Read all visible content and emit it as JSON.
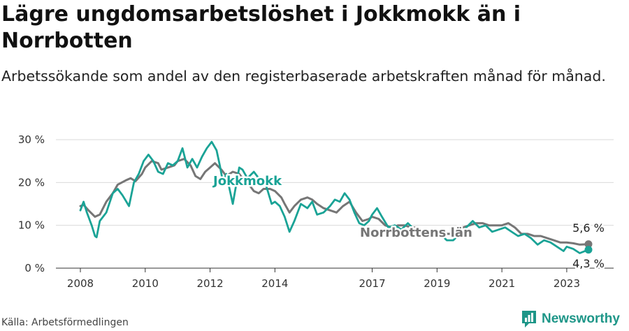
{
  "title": "Lägre ungdomsarbetslöshet i Jokkmokk än i Norrbotten",
  "subtitle": "Arbetssökande som andel av den registerbaserade arbetskraften månad för månad.",
  "source": "Källa: Arbetsförmedlingen",
  "brand": "Newsworthy",
  "colors": {
    "jokkmokk": "#1aa396",
    "norrbotten": "#767676",
    "grid": "#d9d9d9",
    "brand": "#1e9688"
  },
  "chart_data": {
    "type": "line",
    "title": "Lägre ungdomsarbetslöshet i Jokkmokk än i Norrbotten",
    "ylabel": "",
    "xlabel": "",
    "x_range": [
      2008.0,
      2023.67
    ],
    "ylim": [
      0,
      30
    ],
    "y_ticks": [
      0,
      10,
      20,
      30
    ],
    "y_tick_labels": [
      "0 %",
      "10 %",
      "20 %",
      "30 %"
    ],
    "x_ticks": [
      2008,
      2010,
      2012,
      2014,
      2017,
      2019,
      2021,
      2023
    ],
    "x_tick_labels": [
      "2008",
      "2010",
      "2012",
      "2014",
      "2017",
      "2019",
      "2021",
      "2023"
    ],
    "series": [
      {
        "name": "Norrbottens län",
        "label": "Norrbottens län",
        "color": "#767676",
        "x": [
          2008.0,
          2008.1,
          2008.25,
          2008.45,
          2008.6,
          2008.8,
          2009.0,
          2009.15,
          2009.4,
          2009.55,
          2009.7,
          2009.9,
          2010.0,
          2010.2,
          2010.4,
          2010.5,
          2010.7,
          2010.9,
          2011.0,
          2011.2,
          2011.4,
          2011.55,
          2011.7,
          2011.85,
          2012.0,
          2012.15,
          2012.35,
          2012.5,
          2012.7,
          2012.9,
          2013.0,
          2013.2,
          2013.35,
          2013.5,
          2013.65,
          2013.85,
          2014.0,
          2014.2,
          2014.3,
          2014.45,
          2014.6,
          2014.8,
          2015.0,
          2015.15,
          2015.3,
          2015.5,
          2015.7,
          2015.9,
          2016.1,
          2016.3,
          2016.5,
          2016.7,
          2016.9,
          2017.0,
          2017.2,
          2017.4,
          2017.6,
          2017.8,
          2018.0,
          2018.2,
          2018.4,
          2018.6,
          2018.8,
          2019.0,
          2019.2,
          2019.4,
          2019.6,
          2019.8,
          2020.0,
          2020.2,
          2020.4,
          2020.6,
          2020.8,
          2021.0,
          2021.2,
          2021.4,
          2021.6,
          2021.8,
          2022.0,
          2022.2,
          2022.4,
          2022.6,
          2022.8,
          2023.0,
          2023.2,
          2023.4,
          2023.67
        ],
        "values": [
          14.5,
          14.8,
          13.5,
          12.0,
          12.5,
          15.5,
          17.5,
          19.5,
          20.5,
          21.0,
          20.3,
          22.0,
          23.5,
          25.0,
          24.5,
          23.0,
          23.5,
          24.0,
          25.0,
          25.5,
          24.0,
          21.5,
          20.8,
          22.5,
          23.5,
          24.5,
          23.0,
          21.5,
          22.5,
          22.0,
          21.0,
          19.5,
          18.0,
          17.5,
          18.5,
          18.5,
          18.0,
          16.5,
          15.0,
          13.0,
          14.5,
          16.0,
          16.5,
          16.0,
          15.0,
          14.0,
          13.5,
          13.0,
          14.5,
          15.5,
          13.0,
          11.0,
          11.5,
          12.0,
          11.5,
          10.0,
          9.5,
          10.0,
          10.0,
          9.5,
          9.5,
          8.5,
          8.5,
          8.5,
          8.0,
          8.0,
          9.0,
          9.5,
          10.0,
          10.5,
          10.5,
          10.0,
          10.0,
          10.0,
          10.5,
          9.5,
          8.0,
          8.0,
          7.5,
          7.5,
          7.0,
          6.5,
          6.0,
          6.0,
          5.8,
          5.5,
          5.6
        ]
      },
      {
        "name": "Jokkmokk",
        "label": "Jokkmokk",
        "color": "#1aa396",
        "x": [
          2008.0,
          2008.1,
          2008.2,
          2008.35,
          2008.45,
          2008.5,
          2008.6,
          2008.8,
          2009.0,
          2009.15,
          2009.3,
          2009.5,
          2009.65,
          2009.8,
          2009.95,
          2010.1,
          2010.25,
          2010.4,
          2010.55,
          2010.7,
          2010.85,
          2011.0,
          2011.15,
          2011.3,
          2011.45,
          2011.6,
          2011.75,
          2011.9,
          2012.05,
          2012.2,
          2012.3,
          2012.4,
          2012.5,
          2012.7,
          2012.9,
          2013.0,
          2013.15,
          2013.35,
          2013.5,
          2013.7,
          2013.9,
          2014.0,
          2014.15,
          2014.3,
          2014.45,
          2014.6,
          2014.8,
          2015.0,
          2015.15,
          2015.3,
          2015.5,
          2015.7,
          2015.85,
          2016.0,
          2016.15,
          2016.3,
          2016.45,
          2016.6,
          2016.75,
          2016.9,
          2017.0,
          2017.15,
          2017.3,
          2017.5,
          2017.7,
          2017.9,
          2018.1,
          2018.3,
          2018.5,
          2018.7,
          2018.9,
          2019.1,
          2019.3,
          2019.5,
          2019.7,
          2019.9,
          2020.1,
          2020.3,
          2020.5,
          2020.7,
          2020.9,
          2021.1,
          2021.3,
          2021.5,
          2021.7,
          2021.9,
          2022.1,
          2022.3,
          2022.5,
          2022.7,
          2022.9,
          2023.0,
          2023.2,
          2023.4,
          2023.67
        ],
        "values": [
          13.5,
          15.5,
          13.0,
          10.0,
          7.5,
          7.2,
          11.0,
          13.0,
          17.5,
          18.5,
          17.0,
          14.5,
          20.0,
          22.0,
          25.0,
          26.5,
          25.0,
          22.5,
          22.0,
          24.5,
          24.0,
          25.0,
          28.0,
          23.5,
          25.5,
          23.5,
          26.0,
          28.0,
          29.5,
          27.5,
          24.0,
          20.0,
          22.0,
          15.0,
          23.5,
          23.0,
          21.0,
          22.5,
          21.0,
          20.0,
          15.0,
          15.5,
          14.5,
          12.0,
          8.5,
          11.0,
          15.0,
          14.0,
          15.5,
          12.5,
          13.0,
          14.5,
          16.0,
          15.5,
          17.5,
          16.0,
          13.0,
          10.5,
          10.0,
          11.0,
          12.5,
          14.0,
          12.0,
          9.5,
          10.0,
          9.0,
          10.5,
          9.0,
          8.5,
          7.5,
          9.0,
          8.0,
          6.5,
          6.5,
          8.0,
          9.5,
          11.0,
          9.5,
          10.0,
          8.5,
          9.0,
          9.5,
          8.5,
          7.5,
          8.0,
          7.0,
          5.5,
          6.5,
          6.0,
          5.0,
          4.0,
          5.0,
          4.5,
          3.5,
          4.3
        ]
      }
    ],
    "annotations": {
      "jokkmokk_label": "Jokkmokk",
      "norrbotten_label": "Norrbottens län",
      "norrbotten_end_label": "5,6 %",
      "jokkmokk_end_label": "4,3 %"
    }
  }
}
